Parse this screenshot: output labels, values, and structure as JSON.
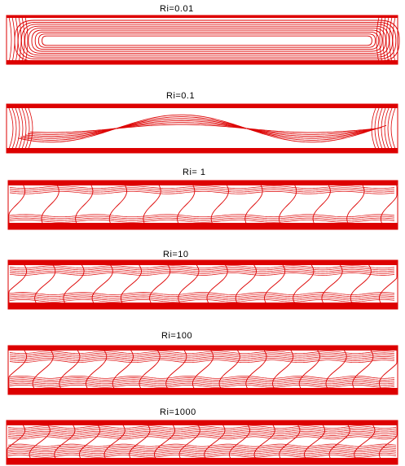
{
  "figure": {
    "line_color": "#dd0000",
    "background": "#ffffff",
    "panels": [
      {
        "label": "Ri=0.01",
        "wave_count": 0,
        "pattern": "single-cell"
      },
      {
        "label": "Ri=0.1",
        "wave_count": 0,
        "pattern": "zigzag-cells"
      },
      {
        "label": "Ri= 1",
        "wave_count": 11,
        "pattern": "tilted-waves"
      },
      {
        "label": "Ri=10",
        "wave_count": 13,
        "pattern": "waves"
      },
      {
        "label": "Ri=100",
        "wave_count": 14,
        "pattern": "waves"
      },
      {
        "label": "Ri=1000",
        "wave_count": 15,
        "pattern": "waves"
      }
    ]
  }
}
